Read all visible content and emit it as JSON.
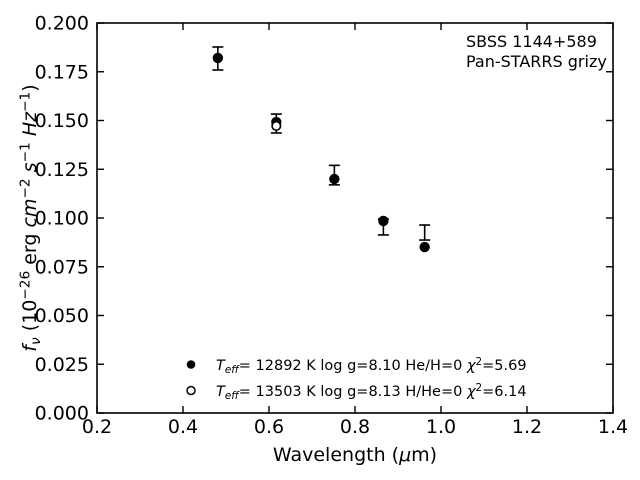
{
  "colors": {
    "foreground": "#000000",
    "background": "#ffffff"
  },
  "chart_data": {
    "type": "scatter",
    "title": "",
    "xlabel": "Wavelength (μm)",
    "ylabel": "f_ν (10−26 erg cm−2 s−1 Hz−1)",
    "xlabel_rich": [
      {
        "t": "Wavelength (",
        "k": "n"
      },
      {
        "t": "μ",
        "k": "i"
      },
      {
        "t": "m)",
        "k": "n"
      }
    ],
    "ylabel_rich": [
      {
        "t": "f",
        "k": "i"
      },
      {
        "t": "ν",
        "k": "subi"
      },
      {
        "t": " (10",
        "k": "n"
      },
      {
        "t": "−26",
        "k": "sup"
      },
      {
        "t": " erg ",
        "k": "n"
      },
      {
        "t": "cm",
        "k": "i"
      },
      {
        "t": "−2",
        "k": "sup"
      },
      {
        "t": " ",
        "k": "n"
      },
      {
        "t": "s",
        "k": "i"
      },
      {
        "t": "−1",
        "k": "sup"
      },
      {
        "t": " ",
        "k": "n"
      },
      {
        "t": "Hz",
        "k": "i"
      },
      {
        "t": "−1",
        "k": "sup"
      },
      {
        "t": ")",
        "k": "n"
      }
    ],
    "xlim": [
      0.2,
      1.4
    ],
    "ylim": [
      0.0,
      0.2
    ],
    "xticks": [
      0.2,
      0.4,
      0.6,
      0.8,
      1.0,
      1.2,
      1.4
    ],
    "xtick_labels": [
      "0.2",
      "0.4",
      "0.6",
      "0.8",
      "1.0",
      "1.2",
      "1.4"
    ],
    "yticks": [
      0.0,
      0.025,
      0.05,
      0.075,
      0.1,
      0.125,
      0.15,
      0.175,
      0.2
    ],
    "ytick_labels": [
      "0.000",
      "0.025",
      "0.050",
      "0.075",
      "0.100",
      "0.125",
      "0.150",
      "0.175",
      "0.200"
    ],
    "annotation_lines": [
      "SBSS 1144+589",
      "Pan-STARRS grizy"
    ],
    "series": [
      {
        "name": "observed-photometry-errorbars",
        "kind": "errorbar",
        "points": [
          {
            "x": 0.481,
            "y": 0.1818,
            "lo": 0.1759,
            "hi": 0.1877
          },
          {
            "x": 0.617,
            "y": 0.1485,
            "lo": 0.1436,
            "hi": 0.1533
          },
          {
            "x": 0.752,
            "y": 0.122,
            "lo": 0.117,
            "hi": 0.127
          },
          {
            "x": 0.866,
            "y": 0.0954,
            "lo": 0.0913,
            "hi": 0.0995
          },
          {
            "x": 0.962,
            "y": 0.0926,
            "lo": 0.0887,
            "hi": 0.0964
          }
        ]
      },
      {
        "name": "model-fit-pure-he",
        "kind": "filled-circle",
        "points": [
          {
            "x": 0.481,
            "y": 0.1821
          },
          {
            "x": 0.617,
            "y": 0.1492
          },
          {
            "x": 0.752,
            "y": 0.12
          },
          {
            "x": 0.866,
            "y": 0.0985
          },
          {
            "x": 0.962,
            "y": 0.0851
          }
        ]
      },
      {
        "name": "model-fit-pure-h",
        "kind": "open-circle",
        "points": [
          {
            "x": 0.617,
            "y": 0.1472
          }
        ]
      }
    ],
    "legend": {
      "position": "lower-center",
      "items": [
        {
          "marker": "filled-circle",
          "label": "T_eff= 12892 K  log g=8.10  He/H=0  χ2=5.69",
          "label_rich": [
            {
              "t": "T",
              "k": "i"
            },
            {
              "t": "eff",
              "k": "subi"
            },
            {
              "t": "= 12892 K  log g=8.10  He/H=0  ",
              "k": "n"
            },
            {
              "t": "χ",
              "k": "i"
            },
            {
              "t": "2",
              "k": "sup"
            },
            {
              "t": "=5.69",
              "k": "n"
            }
          ]
        },
        {
          "marker": "open-circle",
          "label": "T_eff= 13503 K  log g=8.13  H/He=0  χ2=6.14",
          "label_rich": [
            {
              "t": "T",
              "k": "i"
            },
            {
              "t": "eff",
              "k": "subi"
            },
            {
              "t": "= 13503 K  log g=8.13  H/He=0  ",
              "k": "n"
            },
            {
              "t": "χ",
              "k": "i"
            },
            {
              "t": "2",
              "k": "sup"
            },
            {
              "t": "=6.14",
              "k": "n"
            }
          ]
        }
      ]
    }
  }
}
